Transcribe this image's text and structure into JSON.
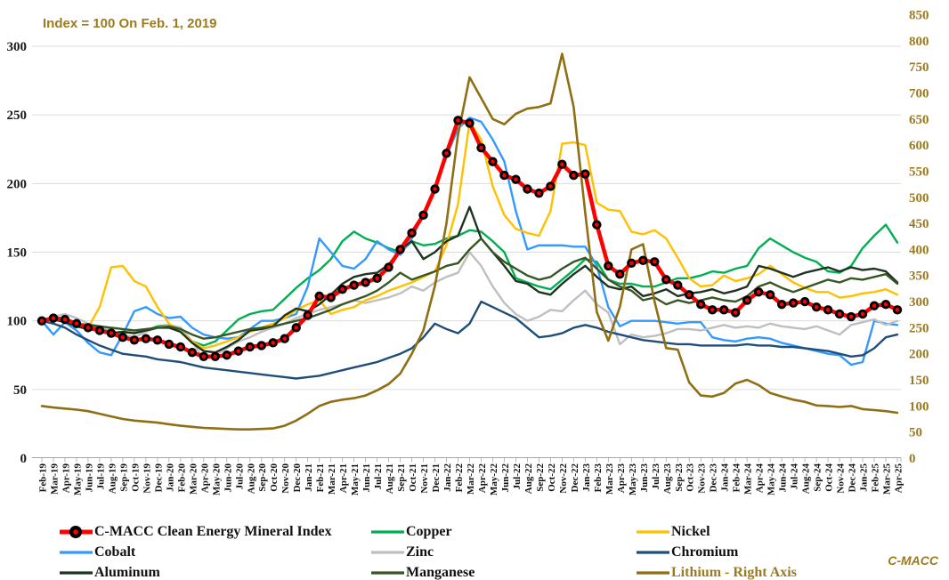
{
  "chart": {
    "title": "Index = 100 On Feb. 1, 2019",
    "watermark": "C-MACC",
    "colors": {
      "accent_gold": "#9C7A1E",
      "grid": "#DCDCDC",
      "axis": "#A6A6A6"
    },
    "legend_rows": [
      [
        0,
        1,
        4
      ],
      [
        2,
        3,
        5
      ],
      [
        6,
        7,
        8
      ]
    ]
  },
  "chart_data": {
    "type": "line",
    "title": "Index = 100 On Feb. 1, 2019",
    "grid": true,
    "legend_position": "bottom",
    "x": [
      "Feb-19",
      "Mar-19",
      "Apr-19",
      "May-19",
      "Jun-19",
      "Jul-19",
      "Aug-19",
      "Sep-19",
      "Oct-19",
      "Nov-19",
      "Dec-19",
      "Jan-20",
      "Feb-20",
      "Mar-20",
      "Apr-20",
      "May-20",
      "Jun-20",
      "Jul-20",
      "Aug-20",
      "Sep-20",
      "Oct-20",
      "Nov-20",
      "Dec-20",
      "Jan-21",
      "Feb-21",
      "Mar-21",
      "Apr-21",
      "May-21",
      "Jun-21",
      "Jul-21",
      "Aug-21",
      "Sep-21",
      "Oct-21",
      "Nov-21",
      "Dec-21",
      "Jan-22",
      "Feb-22",
      "Mar-22",
      "Apr-22",
      "May-22",
      "Jun-22",
      "Jul-22",
      "Aug-22",
      "Sep-22",
      "Oct-22",
      "Nov-22",
      "Dec-22",
      "Jan-23",
      "Feb-23",
      "Mar-23",
      "Apr-23",
      "May-23",
      "Jun-23",
      "Jul-23",
      "Aug-23",
      "Sep-23",
      "Oct-23",
      "Nov-23",
      "Dec-23",
      "Jan-24",
      "Feb-24",
      "Mar-24",
      "Apr-24",
      "May-24",
      "Jun-24",
      "Jul-24",
      "Aug-24",
      "Sep-24",
      "Oct-24",
      "Nov-24",
      "Dec-24",
      "Jan-25",
      "Feb-25",
      "Mar-25",
      "Apr-25"
    ],
    "left_axis": {
      "range": [
        0,
        300
      ],
      "ticks": [
        0,
        50,
        100,
        150,
        200,
        250,
        300
      ]
    },
    "right_axis": {
      "range": [
        0,
        850
      ],
      "ticks": [
        0,
        50,
        100,
        150,
        200,
        250,
        300,
        350,
        400,
        450,
        500,
        550,
        600,
        650,
        700,
        750,
        800,
        850
      ]
    },
    "series": [
      {
        "name": "C-MACC Clean Energy Mineral Index",
        "axis": "left",
        "color": "#FF0000",
        "width": 4.5,
        "marker": true,
        "values": [
          100,
          102,
          101,
          98,
          95,
          93,
          91,
          88,
          86,
          87,
          86,
          83,
          81,
          77,
          74,
          74,
          75,
          78,
          81,
          82,
          84,
          87,
          95,
          104,
          118,
          117,
          123,
          126,
          128,
          131,
          139,
          152,
          164,
          177,
          196,
          222,
          246,
          244,
          226,
          216,
          206,
          203,
          196,
          193,
          198,
          214,
          206,
          207,
          170,
          140,
          134,
          142,
          144,
          143,
          130,
          126,
          119,
          112,
          108,
          108,
          106,
          115,
          121,
          119,
          112,
          113,
          114,
          110,
          108,
          105,
          103,
          105,
          111,
          112,
          108
        ]
      },
      {
        "name": "Copper",
        "axis": "left",
        "color": "#00B050",
        "width": 2.4,
        "marker": false,
        "values": [
          100,
          102,
          101,
          96,
          94,
          96,
          91,
          92,
          91,
          93,
          96,
          97,
          95,
          85,
          82,
          85,
          93,
          101,
          105,
          107,
          108,
          116,
          124,
          131,
          137,
          145,
          158,
          165,
          160,
          157,
          153,
          150,
          158,
          155,
          156,
          160,
          162,
          166,
          165,
          158,
          150,
          131,
          128,
          125,
          123,
          130,
          137,
          145,
          143,
          130,
          127,
          127,
          125,
          125,
          128,
          131,
          131,
          133,
          136,
          135,
          138,
          140,
          153,
          160,
          155,
          150,
          146,
          143,
          136,
          135,
          140,
          153,
          162,
          170,
          157
        ]
      },
      {
        "name": "Cobalt",
        "axis": "left",
        "color": "#3399FF",
        "width": 2.4,
        "marker": false,
        "values": [
          100,
          90,
          99,
          93,
          84,
          77,
          75,
          90,
          107,
          110,
          105,
          102,
          103,
          95,
          90,
          88,
          87,
          88,
          94,
          100,
          100,
          102,
          105,
          125,
          160,
          150,
          140,
          138,
          145,
          158,
          152,
          148,
          160,
          178,
          195,
          220,
          240,
          248,
          245,
          232,
          216,
          180,
          152,
          155,
          155,
          155,
          154,
          154,
          140,
          110,
          96,
          100,
          100,
          100,
          99,
          98,
          99,
          99,
          88,
          86,
          85,
          87,
          88,
          87,
          84,
          82,
          80,
          78,
          76,
          75,
          68,
          70,
          100,
          98,
          97
        ]
      },
      {
        "name": "Zinc",
        "axis": "left",
        "color": "#BFBFBF",
        "width": 2.4,
        "marker": false,
        "values": [
          100,
          103,
          105,
          102,
          98,
          96,
          93,
          90,
          88,
          92,
          95,
          97,
          95,
          85,
          72,
          75,
          80,
          85,
          88,
          92,
          95,
          98,
          102,
          105,
          108,
          110,
          112,
          115,
          113,
          115,
          117,
          120,
          125,
          122,
          128,
          132,
          135,
          150,
          140,
          125,
          113,
          105,
          100,
          103,
          108,
          107,
          115,
          122,
          112,
          106,
          83,
          90,
          88,
          89,
          91,
          94,
          94,
          93,
          95,
          97,
          95,
          96,
          95,
          98,
          96,
          95,
          94,
          96,
          93,
          90,
          97,
          99,
          101,
          97,
          100
        ]
      },
      {
        "name": "Nickel",
        "axis": "left",
        "color": "#FFC000",
        "width": 2.4,
        "marker": false,
        "values": [
          100,
          101,
          99,
          97,
          95,
          110,
          139,
          140,
          129,
          125,
          110,
          98,
          92,
          85,
          80,
          82,
          85,
          88,
          92,
          95,
          98,
          102,
          108,
          112,
          115,
          105,
          108,
          110,
          115,
          118,
          122,
          125,
          128,
          132,
          136,
          155,
          185,
          245,
          232,
          198,
          177,
          167,
          164,
          162,
          180,
          229,
          230,
          228,
          186,
          181,
          180,
          165,
          163,
          166,
          160,
          146,
          131,
          125,
          126,
          133,
          129,
          131,
          134,
          140,
          134,
          128,
          124,
          121,
          121,
          117,
          118,
          120,
          121,
          123,
          119
        ]
      },
      {
        "name": "Chromium",
        "axis": "left",
        "color": "#1F4E79",
        "width": 2.4,
        "marker": false,
        "values": [
          100,
          98,
          95,
          90,
          86,
          82,
          79,
          76,
          75,
          74,
          72,
          71,
          70,
          68,
          66,
          65,
          64,
          63,
          62,
          61,
          60,
          59,
          58,
          59,
          60,
          62,
          64,
          66,
          68,
          70,
          73,
          76,
          80,
          88,
          98,
          94,
          91,
          98,
          114,
          110,
          106,
          102,
          95,
          88,
          89,
          91,
          95,
          97,
          95,
          92,
          90,
          88,
          86,
          85,
          84,
          83,
          83,
          82,
          82,
          82,
          82,
          83,
          82,
          82,
          81,
          81,
          80,
          79,
          78,
          76,
          74,
          75,
          80,
          88,
          90
        ]
      },
      {
        "name": "Aluminum",
        "axis": "left",
        "color": "#1E3320",
        "width": 2.4,
        "marker": false,
        "values": [
          100,
          101,
          99,
          96,
          94,
          93,
          91,
          92,
          91,
          93,
          95,
          95,
          92,
          84,
          78,
          77,
          81,
          86,
          93,
          94,
          96,
          104,
          109,
          107,
          112,
          119,
          127,
          132,
          134,
          135,
          141,
          152,
          158,
          145,
          150,
          158,
          162,
          183,
          160,
          150,
          140,
          129,
          127,
          121,
          119,
          127,
          134,
          140,
          132,
          125,
          123,
          125,
          118,
          120,
          123,
          118,
          120,
          121,
          123,
          120,
          122,
          125,
          140,
          138,
          135,
          132,
          135,
          137,
          139,
          136,
          139,
          137,
          138,
          136,
          128
        ]
      },
      {
        "name": "Manganese",
        "axis": "left",
        "color": "#375623",
        "width": 2.4,
        "marker": false,
        "values": [
          100,
          101,
          100,
          98,
          97,
          96,
          95,
          94,
          93,
          94,
          95,
          96,
          94,
          90,
          87,
          88,
          90,
          92,
          94,
          95,
          96,
          98,
          100,
          102,
          105,
          108,
          112,
          115,
          118,
          122,
          128,
          135,
          130,
          133,
          136,
          140,
          142,
          152,
          160,
          150,
          143,
          138,
          133,
          130,
          132,
          138,
          143,
          146,
          138,
          130,
          125,
          122,
          115,
          117,
          112,
          115,
          113,
          115,
          117,
          115,
          114,
          118,
          125,
          128,
          124,
          121,
          124,
          127,
          130,
          128,
          131,
          130,
          132,
          134,
          127
        ]
      },
      {
        "name": "Lithium - Right Axis",
        "axis": "right",
        "color": "#8F6E14",
        "width": 2.6,
        "marker": false,
        "label_color": "#9C7A1E",
        "values": [
          100,
          97,
          95,
          93,
          90,
          85,
          80,
          75,
          72,
          70,
          68,
          65,
          62,
          60,
          58,
          57,
          56,
          55,
          55,
          56,
          57,
          62,
          72,
          85,
          100,
          108,
          112,
          115,
          120,
          130,
          142,
          162,
          200,
          245,
          330,
          450,
          620,
          730,
          690,
          650,
          640,
          660,
          670,
          673,
          680,
          775,
          673,
          470,
          280,
          225,
          290,
          400,
          410,
          300,
          211,
          208,
          145,
          120,
          118,
          125,
          143,
          150,
          140,
          125,
          118,
          112,
          108,
          101,
          100,
          98,
          100,
          94,
          92,
          90,
          87
        ]
      }
    ]
  }
}
